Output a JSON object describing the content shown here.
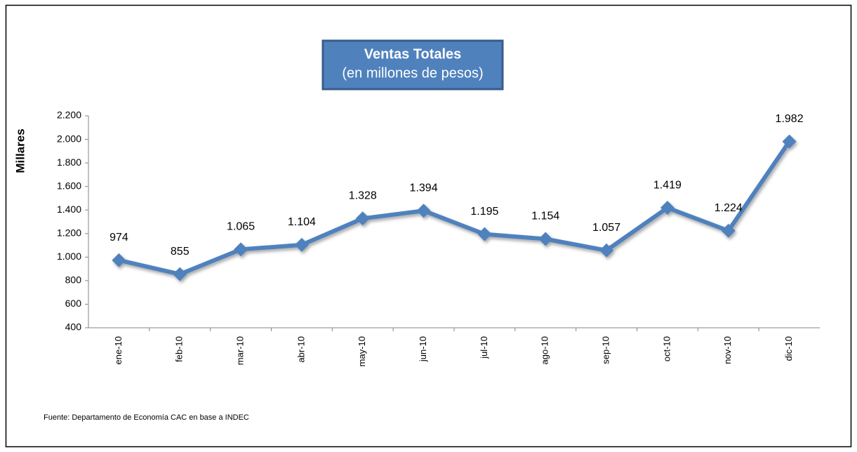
{
  "chart_data": {
    "type": "line",
    "title": "Ventas Totales",
    "subtitle": "(en millones de pesos)",
    "y_label": "Millares",
    "source": "Fuente: Departamento de Economía CAC en base a INDEC",
    "categories": [
      "ene-10",
      "feb-10",
      "mar-10",
      "abr-10",
      "may-10",
      "jun-10",
      "jul-10",
      "ago-10",
      "sep-10",
      "oct-10",
      "nov-10",
      "dic-10"
    ],
    "series": [
      {
        "color": "#4f81bd",
        "values": [
          974,
          855,
          1065,
          1104,
          1328,
          1394,
          1195,
          1154,
          1057,
          1419,
          1224,
          1982
        ],
        "value_labels": [
          "974",
          "855",
          "1.065",
          "1.104",
          "1.328",
          "1.394",
          "1.195",
          "1.154",
          "1.057",
          "1.419",
          "1.224",
          "1.982"
        ]
      }
    ],
    "ylim": [
      400,
      2200
    ],
    "yticks": [
      400,
      600,
      800,
      {
        "value": 1000,
        "label": "1.000"
      },
      {
        "value": 1200,
        "label": "1.200"
      },
      {
        "value": 1400,
        "label": "1.400"
      },
      {
        "value": 1600,
        "label": "1.600"
      },
      {
        "value": 1800,
        "label": "1.800"
      },
      {
        "value": 2000,
        "label": "2.000"
      },
      {
        "value": 2200,
        "label": "2.200"
      }
    ]
  }
}
